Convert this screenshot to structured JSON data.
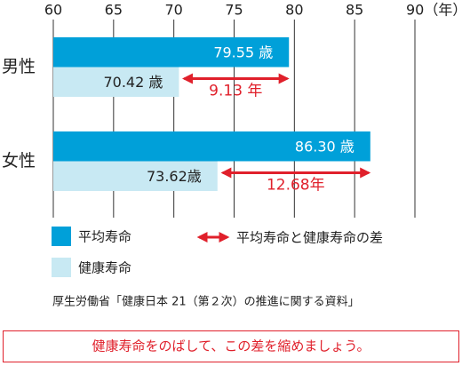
{
  "chart_data": {
    "type": "bar",
    "orientation": "horizontal",
    "categories": [
      "男性",
      "女性"
    ],
    "series": [
      {
        "name": "平均寿命",
        "color": "#00a0d9",
        "values": [
          79.55,
          86.3
        ],
        "value_labels": [
          "79.55 歳",
          "86.30 歳"
        ]
      },
      {
        "name": "健康寿命",
        "color": "#c8e9f3",
        "values": [
          70.42,
          73.62
        ],
        "value_labels": [
          "70.42 歳",
          "73.62歳"
        ]
      }
    ],
    "xlim": [
      60,
      90
    ],
    "xticks": [
      60,
      65,
      70,
      75,
      80,
      85,
      {
        "value": 90,
        "label": "90（年）"
      }
    ],
    "grid": true,
    "annotations": [
      {
        "text": "9.13 年",
        "color": "#e0202b"
      },
      {
        "text": "12.68年",
        "color": "#e0202b"
      }
    ],
    "gap_legend": "平均寿命と健康寿命の差",
    "source": "厚生労働省「健康日本 21（第２次）の推進に関する資料」",
    "message": "健康寿命をのばして、この差を縮めましょう。"
  }
}
